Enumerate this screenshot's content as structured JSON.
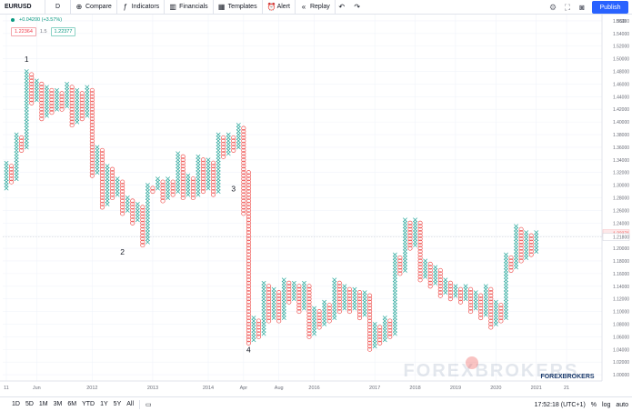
{
  "toolbar": {
    "symbol": "EURUSD",
    "interval": "D",
    "compare": "Compare",
    "indicators": "Indicators",
    "financials": "Financials",
    "templates": "Templates",
    "alert": "Alert",
    "replay": "Replay",
    "publish": "Publish"
  },
  "legend": {
    "change": "+0.04200 (+3.57%)",
    "bid": "1.22364",
    "spread": "1.5",
    "ask": "1.22377"
  },
  "bottom": {
    "ranges": [
      "1D",
      "5D",
      "1M",
      "3M",
      "6M",
      "YTD",
      "1Y",
      "5Y",
      "All"
    ],
    "time": "17:52:18 (UTC+1)",
    "percent": "%",
    "log": "log",
    "auto": "auto"
  },
  "watermark": {
    "text": "FOREXBROKERS",
    "small": "FOREXBROKERS"
  },
  "colors": {
    "up": "#26a69a",
    "down": "#ef5350",
    "grid": "#f0f3fa",
    "axis_text": "#6a6d78",
    "accent": "#2962ff"
  },
  "icons": {
    "compare": "plus-circle-icon",
    "indicators": "indicators-icon",
    "financials": "financials-icon",
    "templates": "templates-icon",
    "alert": "alarm-clock-icon",
    "replay": "replay-icon",
    "undo": "undo-icon",
    "redo": "redo-icon",
    "settings": "gear-icon",
    "fullscreen": "fullscreen-icon",
    "snapshot": "camera-icon",
    "search": "search-icon",
    "compare_range": "calendar-icon"
  },
  "chart_data": {
    "type": "point_and_figure",
    "symbol": "EURUSD",
    "box_size": 0.005,
    "ylim": [
      0.99,
      1.57
    ],
    "y_ticks": [
      "1.56000",
      "1.54000",
      "1.52000",
      "1.50000",
      "1.48000",
      "1.46000",
      "1.44000",
      "1.42000",
      "1.40000",
      "1.38000",
      "1.36000",
      "1.34000",
      "1.32000",
      "1.30000",
      "1.28000",
      "1.26000",
      "1.24000",
      "1.22000",
      "1.20000",
      "1.18000",
      "1.16000",
      "1.14000",
      "1.12000",
      "1.10000",
      "1.08000",
      "1.06000",
      "1.04000",
      "1.02000",
      "1.00000"
    ],
    "y_ticks_values": [
      1.56,
      1.54,
      1.52,
      1.5,
      1.48,
      1.46,
      1.44,
      1.42,
      1.4,
      1.38,
      1.36,
      1.34,
      1.32,
      1.3,
      1.28,
      1.26,
      1.24,
      1.22,
      1.2,
      1.18,
      1.16,
      1.14,
      1.12,
      1.1,
      1.08,
      1.06,
      1.04,
      1.02,
      1.0
    ],
    "y_axis_unit": "USD",
    "x_ticks": [
      {
        "label": "11",
        "col": 0
      },
      {
        "label": "Jun",
        "col": 6
      },
      {
        "label": "2012",
        "col": 17
      },
      {
        "label": "2013",
        "col": 29
      },
      {
        "label": "2014",
        "col": 40
      },
      {
        "label": "Apr",
        "col": 47
      },
      {
        "label": "Aug",
        "col": 54
      },
      {
        "label": "2016",
        "col": 61
      },
      {
        "label": "2017",
        "col": 73
      },
      {
        "label": "2018",
        "col": 81
      },
      {
        "label": "2019",
        "col": 89
      },
      {
        "label": "2020",
        "col": 97
      },
      {
        "label": "2021",
        "col": 105
      },
      {
        "label": "21",
        "col": 111
      }
    ],
    "price_labels": [
      {
        "value": 1.22371,
        "text": "1.22371",
        "kind": "down"
      },
      {
        "value": 1.218,
        "text": "1.21800",
        "kind": "neutral"
      }
    ],
    "annotations": [
      {
        "text": "1",
        "col": 4,
        "price": 1.495
      },
      {
        "text": "2",
        "col": 23,
        "price": 1.19
      },
      {
        "text": "3",
        "col": 45,
        "price": 1.29
      },
      {
        "text": "4",
        "col": 48,
        "price": 1.035
      }
    ],
    "columns": [
      {
        "type": "X",
        "low": 1.295,
        "high": 1.335
      },
      {
        "type": "O",
        "low": 1.305,
        "high": 1.33
      },
      {
        "type": "X",
        "low": 1.31,
        "high": 1.38
      },
      {
        "type": "O",
        "low": 1.355,
        "high": 1.375
      },
      {
        "type": "X",
        "low": 1.36,
        "high": 1.48
      },
      {
        "type": "O",
        "low": 1.43,
        "high": 1.475
      },
      {
        "type": "X",
        "low": 1.435,
        "high": 1.465
      },
      {
        "type": "O",
        "low": 1.405,
        "high": 1.46
      },
      {
        "type": "X",
        "low": 1.41,
        "high": 1.455
      },
      {
        "type": "O",
        "low": 1.415,
        "high": 1.45
      },
      {
        "type": "X",
        "low": 1.42,
        "high": 1.45
      },
      {
        "type": "O",
        "low": 1.42,
        "high": 1.445
      },
      {
        "type": "X",
        "low": 1.425,
        "high": 1.46
      },
      {
        "type": "O",
        "low": 1.395,
        "high": 1.455
      },
      {
        "type": "X",
        "low": 1.4,
        "high": 1.45
      },
      {
        "type": "O",
        "low": 1.405,
        "high": 1.445
      },
      {
        "type": "X",
        "low": 1.41,
        "high": 1.455
      },
      {
        "type": "O",
        "low": 1.315,
        "high": 1.45
      },
      {
        "type": "X",
        "low": 1.32,
        "high": 1.36
      },
      {
        "type": "O",
        "low": 1.265,
        "high": 1.355
      },
      {
        "type": "X",
        "low": 1.27,
        "high": 1.33
      },
      {
        "type": "O",
        "low": 1.28,
        "high": 1.325
      },
      {
        "type": "X",
        "low": 1.285,
        "high": 1.31
      },
      {
        "type": "O",
        "low": 1.255,
        "high": 1.305
      },
      {
        "type": "X",
        "low": 1.26,
        "high": 1.28
      },
      {
        "type": "O",
        "low": 1.24,
        "high": 1.275
      },
      {
        "type": "X",
        "low": 1.245,
        "high": 1.27
      },
      {
        "type": "O",
        "low": 1.205,
        "high": 1.265
      },
      {
        "type": "X",
        "low": 1.21,
        "high": 1.3
      },
      {
        "type": "O",
        "low": 1.29,
        "high": 1.295
      },
      {
        "type": "X",
        "low": 1.295,
        "high": 1.31
      },
      {
        "type": "O",
        "low": 1.275,
        "high": 1.305
      },
      {
        "type": "X",
        "low": 1.28,
        "high": 1.31
      },
      {
        "type": "O",
        "low": 1.285,
        "high": 1.305
      },
      {
        "type": "X",
        "low": 1.29,
        "high": 1.35
      },
      {
        "type": "O",
        "low": 1.28,
        "high": 1.345
      },
      {
        "type": "X",
        "low": 1.285,
        "high": 1.315
      },
      {
        "type": "O",
        "low": 1.28,
        "high": 1.31
      },
      {
        "type": "X",
        "low": 1.285,
        "high": 1.345
      },
      {
        "type": "O",
        "low": 1.29,
        "high": 1.34
      },
      {
        "type": "X",
        "low": 1.295,
        "high": 1.34
      },
      {
        "type": "O",
        "low": 1.285,
        "high": 1.335
      },
      {
        "type": "X",
        "low": 1.29,
        "high": 1.38
      },
      {
        "type": "O",
        "low": 1.345,
        "high": 1.375
      },
      {
        "type": "X",
        "low": 1.35,
        "high": 1.38
      },
      {
        "type": "O",
        "low": 1.355,
        "high": 1.375
      },
      {
        "type": "X",
        "low": 1.36,
        "high": 1.395
      },
      {
        "type": "O",
        "low": 1.255,
        "high": 1.39
      },
      {
        "type": "O",
        "low": 1.05,
        "high": 1.32
      },
      {
        "type": "X",
        "low": 1.055,
        "high": 1.09
      },
      {
        "type": "O",
        "low": 1.06,
        "high": 1.085
      },
      {
        "type": "X",
        "low": 1.065,
        "high": 1.145
      },
      {
        "type": "O",
        "low": 1.085,
        "high": 1.14
      },
      {
        "type": "X",
        "low": 1.09,
        "high": 1.135
      },
      {
        "type": "O",
        "low": 1.085,
        "high": 1.13
      },
      {
        "type": "X",
        "low": 1.09,
        "high": 1.15
      },
      {
        "type": "O",
        "low": 1.115,
        "high": 1.145
      },
      {
        "type": "X",
        "low": 1.12,
        "high": 1.145
      },
      {
        "type": "O",
        "low": 1.1,
        "high": 1.14
      },
      {
        "type": "X",
        "low": 1.105,
        "high": 1.145
      },
      {
        "type": "O",
        "low": 1.06,
        "high": 1.14
      },
      {
        "type": "X",
        "low": 1.065,
        "high": 1.105
      },
      {
        "type": "O",
        "low": 1.075,
        "high": 1.1
      },
      {
        "type": "X",
        "low": 1.08,
        "high": 1.115
      },
      {
        "type": "O",
        "low": 1.085,
        "high": 1.11
      },
      {
        "type": "X",
        "low": 1.09,
        "high": 1.15
      },
      {
        "type": "O",
        "low": 1.1,
        "high": 1.145
      },
      {
        "type": "X",
        "low": 1.105,
        "high": 1.14
      },
      {
        "type": "O",
        "low": 1.1,
        "high": 1.135
      },
      {
        "type": "X",
        "low": 1.105,
        "high": 1.135
      },
      {
        "type": "O",
        "low": 1.09,
        "high": 1.13
      },
      {
        "type": "X",
        "low": 1.095,
        "high": 1.13
      },
      {
        "type": "O",
        "low": 1.04,
        "high": 1.125
      },
      {
        "type": "X",
        "low": 1.045,
        "high": 1.08
      },
      {
        "type": "O",
        "low": 1.05,
        "high": 1.075
      },
      {
        "type": "X",
        "low": 1.055,
        "high": 1.09
      },
      {
        "type": "O",
        "low": 1.06,
        "high": 1.085
      },
      {
        "type": "X",
        "low": 1.065,
        "high": 1.19
      },
      {
        "type": "O",
        "low": 1.16,
        "high": 1.185
      },
      {
        "type": "X",
        "low": 1.165,
        "high": 1.245
      },
      {
        "type": "O",
        "low": 1.2,
        "high": 1.24
      },
      {
        "type": "X",
        "low": 1.205,
        "high": 1.245
      },
      {
        "type": "O",
        "low": 1.15,
        "high": 1.24
      },
      {
        "type": "X",
        "low": 1.155,
        "high": 1.18
      },
      {
        "type": "O",
        "low": 1.14,
        "high": 1.175
      },
      {
        "type": "X",
        "low": 1.145,
        "high": 1.17
      },
      {
        "type": "O",
        "low": 1.125,
        "high": 1.165
      },
      {
        "type": "X",
        "low": 1.13,
        "high": 1.15
      },
      {
        "type": "O",
        "low": 1.12,
        "high": 1.145
      },
      {
        "type": "X",
        "low": 1.125,
        "high": 1.14
      },
      {
        "type": "O",
        "low": 1.115,
        "high": 1.135
      },
      {
        "type": "X",
        "low": 1.12,
        "high": 1.14
      },
      {
        "type": "O",
        "low": 1.1,
        "high": 1.135
      },
      {
        "type": "X",
        "low": 1.105,
        "high": 1.13
      },
      {
        "type": "O",
        "low": 1.09,
        "high": 1.125
      },
      {
        "type": "X",
        "low": 1.095,
        "high": 1.14
      },
      {
        "type": "O",
        "low": 1.075,
        "high": 1.135
      },
      {
        "type": "X",
        "low": 1.08,
        "high": 1.115
      },
      {
        "type": "O",
        "low": 1.085,
        "high": 1.11
      },
      {
        "type": "X",
        "low": 1.09,
        "high": 1.19
      },
      {
        "type": "O",
        "low": 1.165,
        "high": 1.185
      },
      {
        "type": "X",
        "low": 1.17,
        "high": 1.235
      },
      {
        "type": "O",
        "low": 1.18,
        "high": 1.23
      },
      {
        "type": "X",
        "low": 1.185,
        "high": 1.225
      },
      {
        "type": "O",
        "low": 1.19,
        "high": 1.22
      },
      {
        "type": "X",
        "low": 1.195,
        "high": 1.225
      }
    ]
  }
}
